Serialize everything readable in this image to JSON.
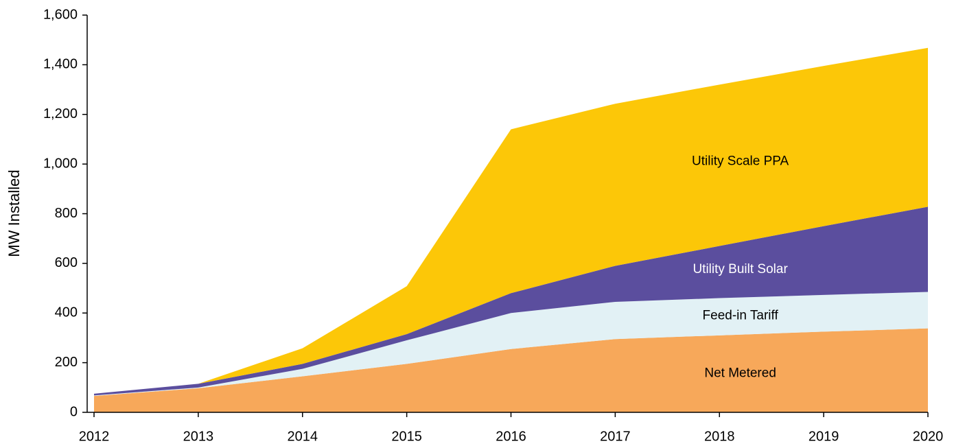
{
  "chart_data": {
    "type": "stacked_area",
    "ylabel": "MW Installed",
    "categories": [
      "2012",
      "2013",
      "2014",
      "2015",
      "2016",
      "2017",
      "2018",
      "2019",
      "2020"
    ],
    "series": [
      {
        "name": "Net Metered",
        "color": "#f7a85a",
        "values": [
          66,
          97,
          145,
          195,
          255,
          295,
          310,
          325,
          338
        ]
      },
      {
        "name": "Feed-in Tariff",
        "color": "#e2f1f5",
        "values": [
          2,
          3,
          30,
          95,
          145,
          150,
          150,
          148,
          147
        ]
      },
      {
        "name": "Utility Built Solar",
        "color": "#5b4e9e",
        "values": [
          7,
          15,
          20,
          25,
          80,
          145,
          210,
          277,
          343
        ]
      },
      {
        "name": "Utility Scale PPA",
        "color": "#fcc708",
        "values": [
          0,
          0,
          63,
          193,
          660,
          653,
          650,
          645,
          640
        ]
      }
    ],
    "ylim": [
      0,
      1600
    ],
    "yticks": [
      0,
      200,
      400,
      600,
      800,
      {
        "value": 1000,
        "label": "1,000"
      },
      {
        "value": 1200,
        "label": "1,200"
      },
      {
        "value": 1400,
        "label": "1,400"
      },
      {
        "value": 1600,
        "label": "1,600"
      }
    ]
  }
}
